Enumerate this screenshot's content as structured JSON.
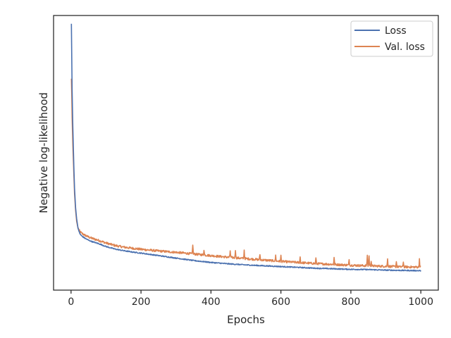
{
  "colors": {
    "loss": "#4c72b0",
    "val_loss": "#dd8452",
    "axes": "#262626",
    "background": "#ffffff"
  },
  "chart_data": {
    "type": "line",
    "title": "",
    "xlabel": "Epochs",
    "ylabel": "Negative log-likelihood",
    "xlim": [
      -50,
      1050
    ],
    "ylim": [
      0,
      1
    ],
    "xticks": [
      0,
      200,
      400,
      600,
      800,
      1000
    ],
    "yticks_shown": false,
    "grid": false,
    "legend": {
      "placement": "top-right",
      "entries": [
        "Loss",
        "Val. loss"
      ]
    },
    "series": [
      {
        "name": "Loss",
        "color": "#4c72b0",
        "points": [
          [
            1,
            0.97
          ],
          [
            2,
            0.85
          ],
          [
            3,
            0.73
          ],
          [
            5,
            0.6
          ],
          [
            8,
            0.45
          ],
          [
            10,
            0.37
          ],
          [
            13,
            0.3
          ],
          [
            16,
            0.26
          ],
          [
            20,
            0.225
          ],
          [
            25,
            0.205
          ],
          [
            30,
            0.197
          ],
          [
            40,
            0.188
          ],
          [
            50,
            0.181
          ],
          [
            60,
            0.176
          ],
          [
            80,
            0.168
          ],
          [
            100,
            0.158
          ],
          [
            125,
            0.149
          ],
          [
            150,
            0.143
          ],
          [
            175,
            0.138
          ],
          [
            200,
            0.134
          ],
          [
            250,
            0.125
          ],
          [
            300,
            0.116
          ],
          [
            350,
            0.107
          ],
          [
            400,
            0.1
          ],
          [
            450,
            0.095
          ],
          [
            500,
            0.091
          ],
          [
            550,
            0.088
          ],
          [
            600,
            0.085
          ],
          [
            650,
            0.082
          ],
          [
            700,
            0.079
          ],
          [
            750,
            0.077
          ],
          [
            800,
            0.075
          ],
          [
            850,
            0.074
          ],
          [
            900,
            0.072
          ],
          [
            950,
            0.071
          ],
          [
            1000,
            0.07
          ]
        ],
        "noise": 0.003
      },
      {
        "name": "Val. loss",
        "color": "#dd8452",
        "points": [
          [
            1,
            0.77
          ],
          [
            2,
            0.71
          ],
          [
            3,
            0.63
          ],
          [
            5,
            0.53
          ],
          [
            8,
            0.42
          ],
          [
            10,
            0.35
          ],
          [
            13,
            0.29
          ],
          [
            16,
            0.25
          ],
          [
            20,
            0.225
          ],
          [
            25,
            0.212
          ],
          [
            30,
            0.206
          ],
          [
            40,
            0.198
          ],
          [
            50,
            0.192
          ],
          [
            60,
            0.187
          ],
          [
            80,
            0.179
          ],
          [
            100,
            0.17
          ],
          [
            125,
            0.161
          ],
          [
            150,
            0.155
          ],
          [
            175,
            0.151
          ],
          [
            200,
            0.147
          ],
          [
            250,
            0.141
          ],
          [
            300,
            0.136
          ],
          [
            350,
            0.13
          ],
          [
            400,
            0.124
          ],
          [
            450,
            0.118
          ],
          [
            500,
            0.113
          ],
          [
            550,
            0.108
          ],
          [
            600,
            0.103
          ],
          [
            650,
            0.099
          ],
          [
            700,
            0.095
          ],
          [
            750,
            0.092
          ],
          [
            800,
            0.089
          ],
          [
            850,
            0.087
          ],
          [
            900,
            0.085
          ],
          [
            950,
            0.083
          ],
          [
            1000,
            0.082
          ]
        ],
        "noise": 0.005,
        "spikes": [
          [
            348,
            0.035
          ],
          [
            380,
            0.02
          ],
          [
            455,
            0.025
          ],
          [
            470,
            0.03
          ],
          [
            495,
            0.03
          ],
          [
            540,
            0.02
          ],
          [
            585,
            0.02
          ],
          [
            600,
            0.02
          ],
          [
            655,
            0.02
          ],
          [
            700,
            0.02
          ],
          [
            752,
            0.025
          ],
          [
            795,
            0.02
          ],
          [
            847,
            0.04
          ],
          [
            852,
            0.035
          ],
          [
            858,
            0.02
          ],
          [
            905,
            0.03
          ],
          [
            930,
            0.02
          ],
          [
            950,
            0.02
          ],
          [
            996,
            0.03
          ]
        ]
      }
    ]
  }
}
